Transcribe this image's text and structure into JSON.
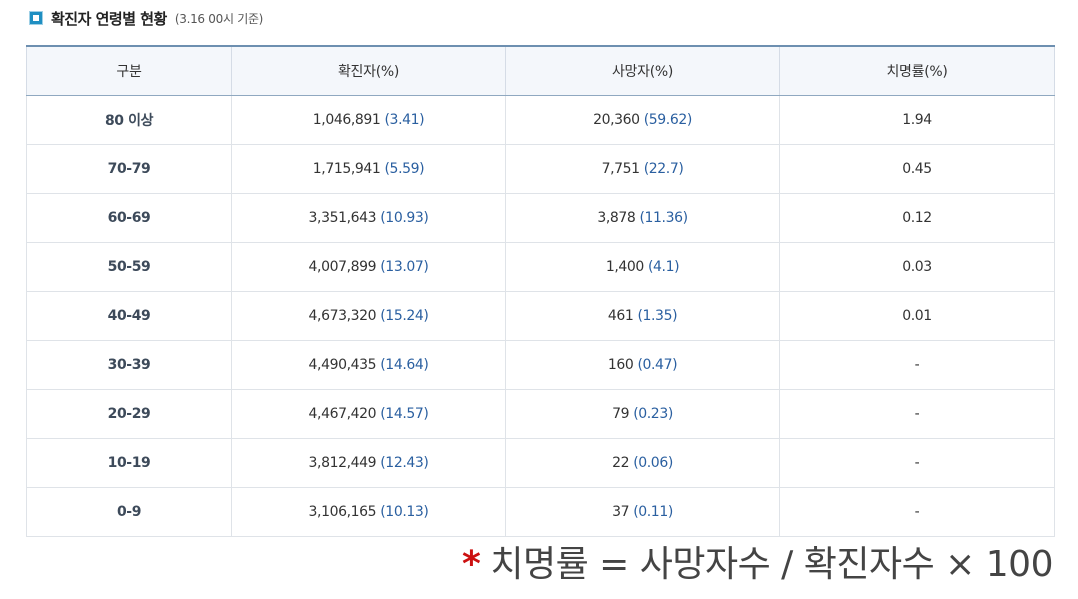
{
  "header": {
    "title": "확진자 연령별 현황",
    "subtitle": "(3.16 00시 기준)",
    "icon": "square-bullet-icon",
    "accent_color": "#1f8fc2"
  },
  "table": {
    "columns": [
      "구분",
      "확진자(%)",
      "사망자(%)",
      "치명률(%)"
    ],
    "rows": [
      {
        "age": "80 이상",
        "cases": "1,046,891",
        "cases_pct": "(3.41)",
        "deaths": "20,360",
        "deaths_pct": "(59.62)",
        "fatality": "1.94"
      },
      {
        "age": "70-79",
        "cases": "1,715,941",
        "cases_pct": "(5.59)",
        "deaths": "7,751",
        "deaths_pct": "(22.7)",
        "fatality": "0.45"
      },
      {
        "age": "60-69",
        "cases": "3,351,643",
        "cases_pct": "(10.93)",
        "deaths": "3,878",
        "deaths_pct": "(11.36)",
        "fatality": "0.12"
      },
      {
        "age": "50-59",
        "cases": "4,007,899",
        "cases_pct": "(13.07)",
        "deaths": "1,400",
        "deaths_pct": "(4.1)",
        "fatality": "0.03"
      },
      {
        "age": "40-49",
        "cases": "4,673,320",
        "cases_pct": "(15.24)",
        "deaths": "461",
        "deaths_pct": "(1.35)",
        "fatality": "0.01"
      },
      {
        "age": "30-39",
        "cases": "4,490,435",
        "cases_pct": "(14.64)",
        "deaths": "160",
        "deaths_pct": "(0.47)",
        "fatality": "-"
      },
      {
        "age": "20-29",
        "cases": "4,467,420",
        "cases_pct": "(14.57)",
        "deaths": "79",
        "deaths_pct": "(0.23)",
        "fatality": "-"
      },
      {
        "age": "10-19",
        "cases": "3,812,449",
        "cases_pct": "(12.43)",
        "deaths": "22",
        "deaths_pct": "(0.06)",
        "fatality": "-"
      },
      {
        "age": "0-9",
        "cases": "3,106,165",
        "cases_pct": "(10.13)",
        "deaths": "37",
        "deaths_pct": "(0.11)",
        "fatality": "-"
      }
    ]
  },
  "footnote": {
    "marker": "*",
    "text": "치명률 = 사망자수 / 확진자수 × 100",
    "marker_color": "#cc1111"
  }
}
